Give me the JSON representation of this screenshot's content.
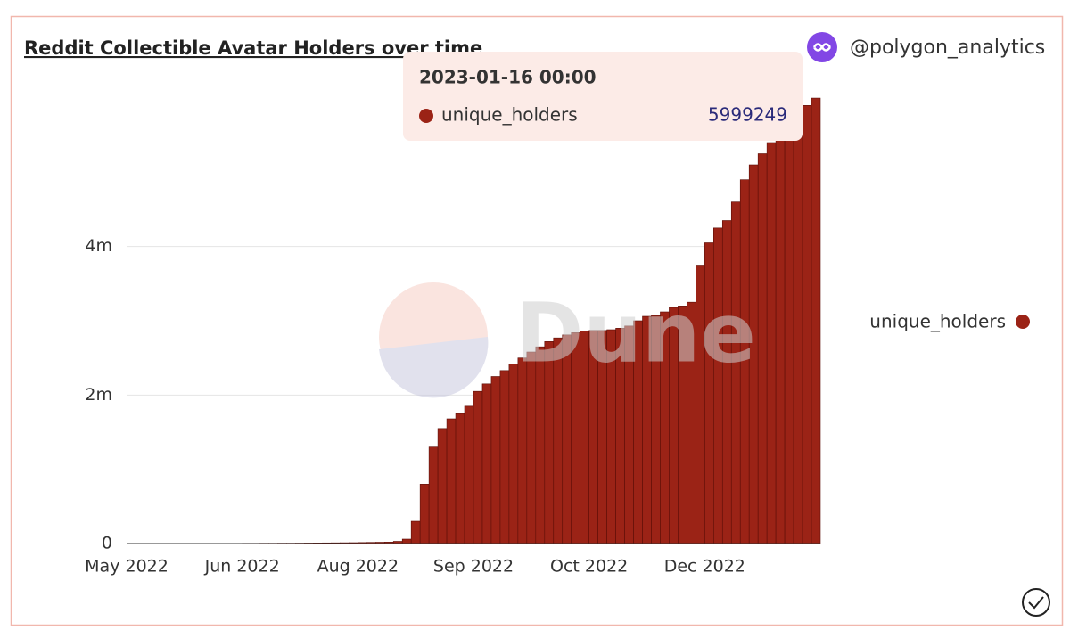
{
  "chart_data": {
    "type": "bar",
    "title": "Reddit Collectible Avatar Holders over time",
    "author": "@polygon_analytics",
    "watermark": "Dune",
    "categories": [
      "May 2022",
      null,
      null,
      null,
      null,
      null,
      null,
      null,
      null,
      null,
      null,
      null,
      null,
      "Jun 2022",
      null,
      null,
      null,
      null,
      null,
      null,
      null,
      null,
      null,
      null,
      null,
      null,
      "Aug 2022",
      null,
      null,
      null,
      null,
      null,
      null,
      null,
      null,
      null,
      null,
      null,
      null,
      "Sep 2022",
      null,
      null,
      null,
      null,
      null,
      null,
      null,
      null,
      null,
      null,
      null,
      null,
      "Oct 2022",
      null,
      null,
      null,
      null,
      null,
      null,
      null,
      null,
      null,
      null,
      null,
      null,
      "Dec 2022",
      null,
      null,
      null,
      null,
      null,
      null,
      null,
      null,
      null,
      null,
      null,
      null
    ],
    "series": [
      {
        "name": "unique_holders",
        "color": "#9b2316",
        "values": [
          0,
          0,
          0,
          0,
          0,
          0,
          0,
          0,
          0,
          1000,
          1000,
          2000,
          2000,
          3000,
          3000,
          4000,
          4000,
          5000,
          5000,
          6000,
          7000,
          8000,
          9000,
          10000,
          11000,
          12000,
          14000,
          16000,
          18000,
          20000,
          30000,
          60000,
          300000,
          800000,
          1300000,
          1550000,
          1680000,
          1750000,
          1850000,
          2050000,
          2150000,
          2250000,
          2330000,
          2420000,
          2500000,
          2580000,
          2650000,
          2720000,
          2770000,
          2810000,
          2840000,
          2860000,
          2870000,
          2870000,
          2880000,
          2900000,
          2930000,
          3000000,
          3060000,
          3070000,
          3120000,
          3180000,
          3200000,
          3250000,
          3750000,
          4050000,
          4250000,
          4350000,
          4600000,
          4900000,
          5100000,
          5250000,
          5400000,
          5500000,
          5600000,
          5750000,
          5900000,
          5999249
        ]
      }
    ],
    "ylim": [
      0,
      6000000
    ],
    "yticks": [
      0,
      {
        "value": 2000000,
        "label": "2m"
      },
      {
        "value": 4000000,
        "label": "4m"
      }
    ],
    "grid": true,
    "legend": "right",
    "tooltip_label": "2023-01-16 00:00"
  }
}
